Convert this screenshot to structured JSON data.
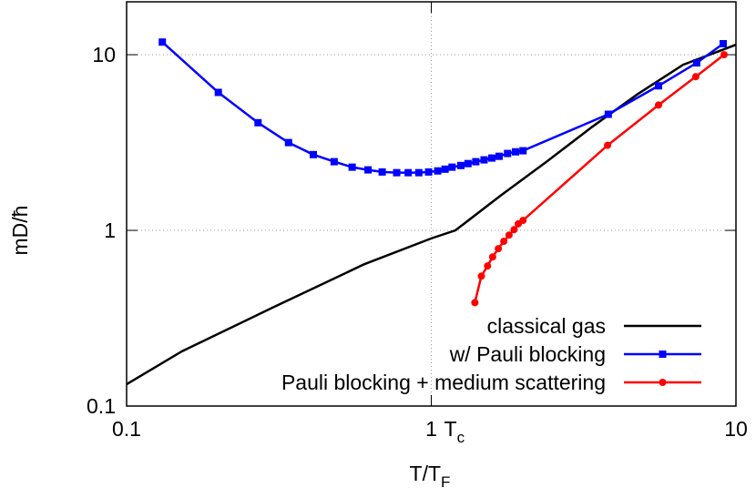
{
  "chart_data": {
    "type": "line",
    "xlabel": "T/T",
    "xlabel_sub": "F",
    "ylabel": "mD/ħ",
    "xscale": "log",
    "yscale": "log",
    "xlim": [
      0.1,
      10
    ],
    "ylim": [
      0.1,
      20
    ],
    "xticks": [
      0.1,
      1,
      10
    ],
    "yticks": [
      0.1,
      1,
      10
    ],
    "grid": true,
    "legend": "lower right",
    "annotations": [
      {
        "text": "T",
        "sub": "c",
        "x": 1
      }
    ],
    "series": [
      {
        "name": "classical gas",
        "color": "#000000",
        "marker": "none",
        "x": [
          0.1,
          0.152,
          0.303,
          0.603,
          1.0,
          1.2,
          1.69,
          2.39,
          3.37,
          4.76,
          6.71,
          10
        ],
        "values": [
          0.133,
          0.205,
          0.365,
          0.642,
          0.9,
          1.0,
          1.58,
          2.46,
          3.88,
          5.97,
          8.77,
          11.4
        ]
      },
      {
        "name": "w/ Pauli blocking",
        "color": "#0000ff",
        "marker": "square",
        "x": [
          0.131,
          0.2,
          0.27,
          0.34,
          0.41,
          0.48,
          0.55,
          0.62,
          0.69,
          0.77,
          0.84,
          0.91,
          0.98,
          1.05,
          1.11,
          1.17,
          1.25,
          1.32,
          1.4,
          1.49,
          1.58,
          1.67,
          1.78,
          1.89,
          2.0,
          3.81,
          5.57,
          7.43,
          9.08
        ],
        "values": [
          11.8,
          6.1,
          4.1,
          3.16,
          2.7,
          2.46,
          2.29,
          2.21,
          2.15,
          2.13,
          2.13,
          2.13,
          2.15,
          2.18,
          2.23,
          2.29,
          2.34,
          2.4,
          2.46,
          2.52,
          2.58,
          2.64,
          2.74,
          2.8,
          2.84,
          4.58,
          6.65,
          8.98,
          11.55
        ]
      },
      {
        "name": "Pauli blocking + medium scattering",
        "color": "#ff0000",
        "marker": "circle",
        "x": [
          1.39,
          1.46,
          1.53,
          1.59,
          1.66,
          1.73,
          1.8,
          1.87,
          1.93,
          2.0,
          3.79,
          5.57,
          7.38,
          9.14
        ],
        "values": [
          0.388,
          0.549,
          0.627,
          0.706,
          0.787,
          0.866,
          0.94,
          1.01,
          1.09,
          1.14,
          3.05,
          5.17,
          7.5,
          10.0
        ]
      }
    ]
  }
}
